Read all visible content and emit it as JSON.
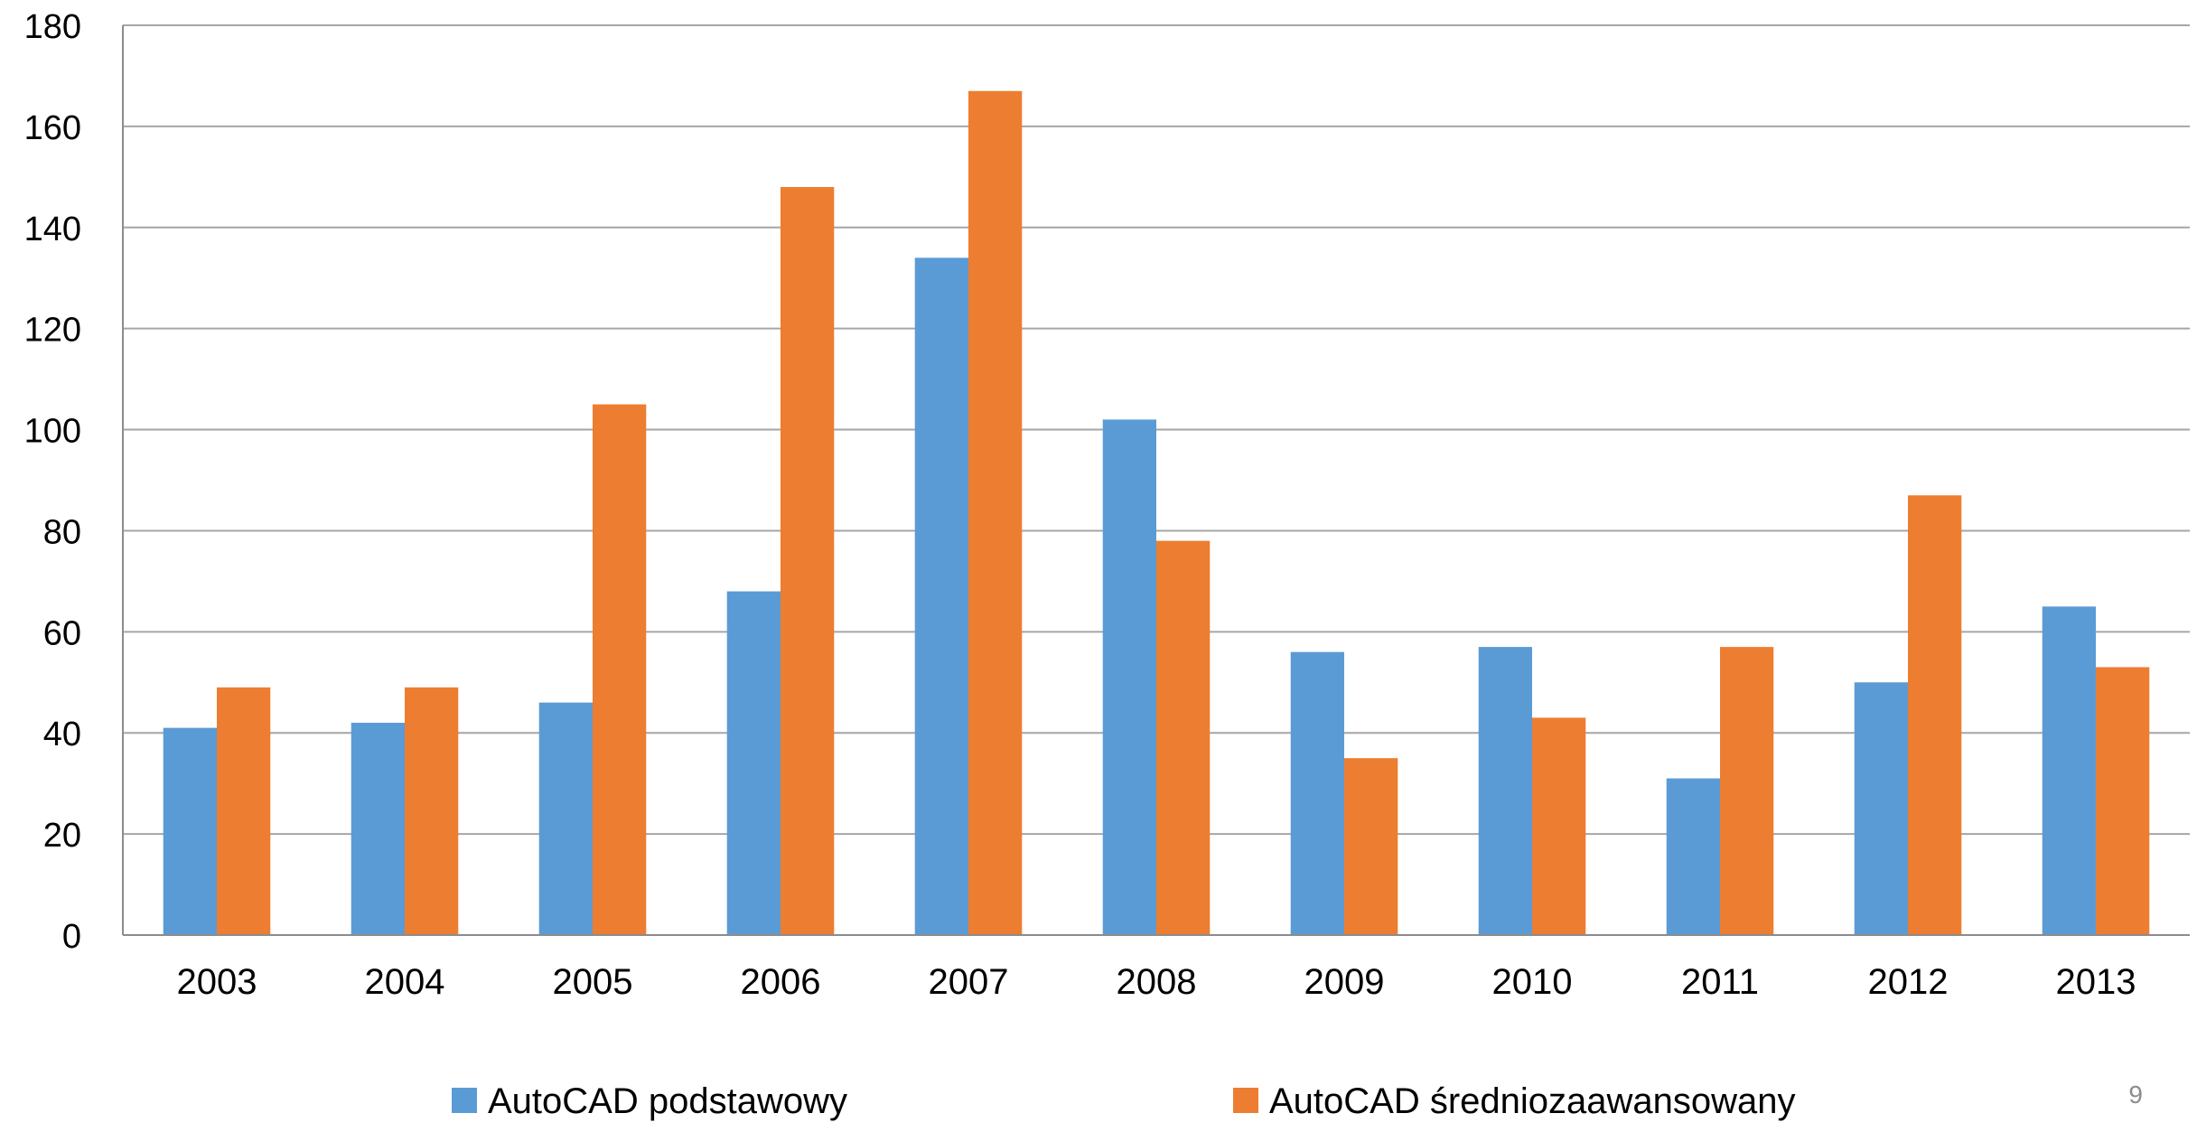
{
  "chart_data": {
    "type": "bar",
    "categories": [
      "2003",
      "2004",
      "2005",
      "2006",
      "2007",
      "2008",
      "2009",
      "2010",
      "2011",
      "2012",
      "2013"
    ],
    "series": [
      {
        "name": "AutoCAD podstawowy",
        "color": "#5B9BD5",
        "values": [
          41,
          42,
          46,
          68,
          134,
          102,
          56,
          57,
          31,
          50,
          65
        ]
      },
      {
        "name": "AutoCAD średniozaawansowany",
        "color": "#ED7D31",
        "values": [
          49,
          49,
          105,
          148,
          167,
          78,
          35,
          43,
          57,
          87,
          53
        ]
      }
    ],
    "ylim": [
      0,
      180
    ],
    "yticks": [
      0,
      20,
      40,
      60,
      80,
      100,
      120,
      140,
      160,
      180
    ],
    "grid": true,
    "legend_position": "bottom",
    "title": "",
    "xlabel": "",
    "ylabel": ""
  },
  "page_number": "9"
}
